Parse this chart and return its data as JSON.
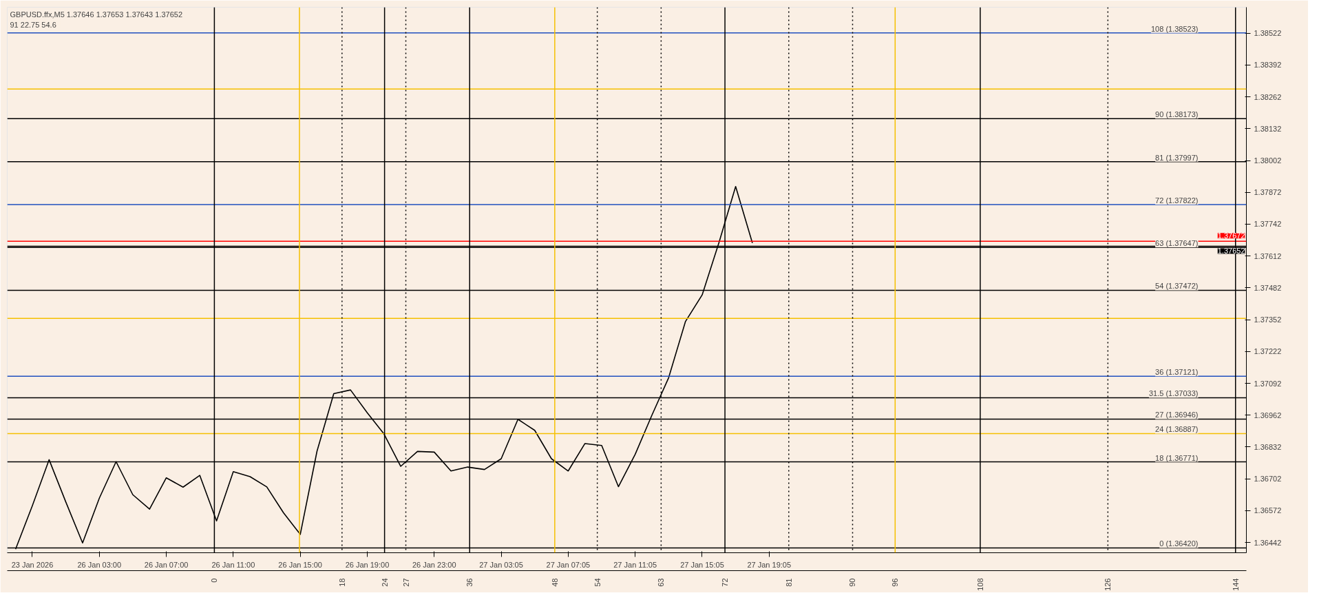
{
  "chart_data": {
    "type": "line",
    "annotations": [
      "GBPUSD.ffx,M5  1.37646 1.37653 1.37643 1.37652",
      "91  22.75  54.6"
    ],
    "categories": [
      null,
      "23 Jan 2026",
      null,
      null,
      null,
      "26 Jan 03:00",
      null,
      null,
      null,
      "26 Jan 07:00",
      null,
      null,
      null,
      "26 Jan 11:00",
      null,
      null,
      null,
      "26 Jan 15:00",
      null,
      null,
      null,
      "26 Jan 19:00",
      null,
      null,
      null,
      "26 Jan 23:00",
      null,
      null,
      null,
      "27 Jan 03:05",
      null,
      null,
      null,
      "27 Jan 07:05",
      null,
      null,
      null,
      "27 Jan 11:05",
      null,
      null,
      null,
      "27 Jan 15:05",
      null,
      null,
      null,
      "27 Jan 19:05",
      null,
      null,
      null,
      null,
      null,
      null,
      null,
      null,
      null,
      null,
      null,
      null,
      null,
      null,
      null,
      null,
      null,
      null,
      null,
      null,
      null,
      null,
      null,
      null,
      null,
      null,
      null,
      null
    ],
    "ylim": [
      1.364,
      1.38628
    ],
    "yticks": [
      1.36442,
      1.36572,
      1.36702,
      1.36832,
      1.36962,
      1.37092,
      1.37222,
      1.37352,
      1.37482,
      1.37612,
      1.37742,
      1.37872,
      1.38002,
      1.38132,
      1.38262,
      1.38392,
      1.38522
    ],
    "x2lim": [
      -29.21,
      145.53
    ],
    "x2ticks": [
      0,
      18,
      24,
      27,
      36,
      48,
      54,
      63,
      72,
      81,
      90,
      96,
      108,
      126,
      144
    ],
    "grid": false,
    "marker": "none",
    "line_style": "solid",
    "series": [
      {
        "color": "#000000",
        "values": [
          1.36415,
          1.36592,
          1.3678,
          1.36607,
          1.3644,
          1.36623,
          1.36772,
          1.36637,
          1.36578,
          1.36706,
          1.36668,
          1.36716,
          1.3653,
          1.36731,
          1.36711,
          1.36669,
          1.36563,
          1.36475,
          1.36815,
          1.3705,
          1.37065,
          1.36972,
          1.36885,
          1.36753,
          1.36814,
          1.36811,
          1.36734,
          1.3675,
          1.3674,
          1.36784,
          1.36945,
          1.369,
          1.36784,
          1.36734,
          1.36846,
          1.36838,
          1.3667,
          1.36802,
          1.36962,
          1.37115,
          1.37344,
          1.37453,
          1.37666,
          1.37896,
          1.37665,
          null,
          null,
          null,
          null,
          null,
          null,
          null,
          null,
          null,
          null,
          null,
          null,
          null,
          null,
          null,
          null,
          null,
          null,
          null,
          null,
          null,
          null,
          null,
          null,
          null,
          null,
          null,
          null,
          null
        ]
      }
    ],
    "ref_lines": [
      {
        "axis": "y",
        "value": 1.38523,
        "label": "108 (1.38523)",
        "color": "#1f4fbf"
      },
      {
        "axis": "y",
        "value": 1.38294,
        "label": null,
        "color": "#f5c000"
      },
      {
        "axis": "y",
        "value": 1.38173,
        "label": "90 (1.38173)",
        "color": "#000000"
      },
      {
        "axis": "y",
        "value": 1.37997,
        "label": "81 (1.37997)",
        "color": "#000000"
      },
      {
        "axis": "y",
        "value": 1.37822,
        "label": "72 (1.37822)",
        "color": "#1f4fbf"
      },
      {
        "axis": "y",
        "value": 1.37672,
        "label": "1.37672",
        "color": "#ff0000"
      },
      {
        "axis": "y",
        "value": 1.37652,
        "label": "1.37652",
        "color": "#000000"
      },
      {
        "axis": "y",
        "value": 1.37647,
        "label": "63 (1.37647)",
        "color": "#000000"
      },
      {
        "axis": "y",
        "value": 1.37472,
        "label": "54 (1.37472)",
        "color": "#000000"
      },
      {
        "axis": "y",
        "value": 1.37357,
        "label": null,
        "color": "#f5c000"
      },
      {
        "axis": "y",
        "value": 1.37121,
        "label": "36 (1.37121)",
        "color": "#1f4fbf"
      },
      {
        "axis": "y",
        "value": 1.37033,
        "label": "31.5 (1.37033)",
        "color": "#000000"
      },
      {
        "axis": "y",
        "value": 1.36946,
        "label": "27 (1.36946)",
        "color": "#000000"
      },
      {
        "axis": "y",
        "value": 1.36887,
        "label": "24 (1.36887)",
        "color": "#f5c000"
      },
      {
        "axis": "y",
        "value": 1.36771,
        "label": "18 (1.36771)",
        "color": "#000000"
      },
      {
        "axis": "y",
        "value": 1.3642,
        "label": "0 (1.36420)",
        "color": "#000000"
      },
      {
        "axis": "x2",
        "value": 0,
        "color": "#000000"
      },
      {
        "axis": "x2",
        "value": 12,
        "color": "#f5c000"
      },
      {
        "axis": "x2",
        "value": 18,
        "color": "#000000",
        "line_style": "dotted"
      },
      {
        "axis": "x2",
        "value": 24,
        "color": "#000000"
      },
      {
        "axis": "x2",
        "value": 27,
        "color": "#000000",
        "line_style": "dotted"
      },
      {
        "axis": "x2",
        "value": 36,
        "color": "#000000"
      },
      {
        "axis": "x2",
        "value": 48,
        "color": "#f5c000"
      },
      {
        "axis": "x2",
        "value": 54,
        "color": "#000000",
        "line_style": "dotted"
      },
      {
        "axis": "x2",
        "value": 63,
        "color": "#000000",
        "line_style": "dotted"
      },
      {
        "axis": "x2",
        "value": 72,
        "color": "#000000"
      },
      {
        "axis": "x2",
        "value": 81,
        "color": "#000000",
        "line_style": "dotted"
      },
      {
        "axis": "x2",
        "value": 90,
        "color": "#000000",
        "line_style": "dotted"
      },
      {
        "axis": "x2",
        "value": 96,
        "color": "#f5c000"
      },
      {
        "axis": "x2",
        "value": 108,
        "color": "#000000"
      },
      {
        "axis": "x2",
        "value": 126,
        "color": "#000000",
        "line_style": "dotted"
      },
      {
        "axis": "x2",
        "value": 144,
        "color": "#000000"
      }
    ]
  }
}
